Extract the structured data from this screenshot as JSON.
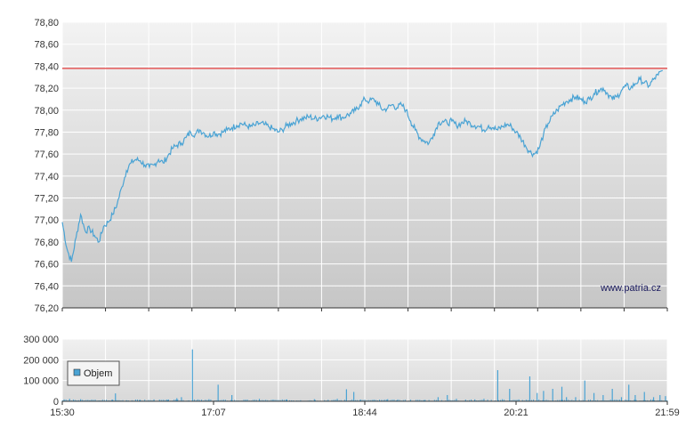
{
  "chart_data": [
    {
      "type": "line",
      "ylim": [
        76.2,
        78.8
      ],
      "y_ticks": [
        "76,20",
        "76,40",
        "76,60",
        "76,80",
        "77,00",
        "77,20",
        "77,40",
        "77,60",
        "77,80",
        "78,00",
        "78,20",
        "78,40",
        "78,60",
        "78,80"
      ],
      "reference_line": 78.38,
      "x_range": [
        "15:30",
        "21:59"
      ],
      "watermark": "www.patria.cz",
      "grid": true,
      "colors": {
        "line": "#4aa3d4",
        "reference": "#e33b3b",
        "grid": "#ffffff",
        "bg_top": "#f2f2f2",
        "bg_bottom": "#c9c9c9"
      },
      "series": [
        {
          "values": [
            [
              0,
              76.98
            ],
            [
              5,
              76.74
            ],
            [
              10,
              76.62
            ],
            [
              15,
              76.84
            ],
            [
              20,
              77.05
            ],
            [
              25,
              76.9
            ],
            [
              30,
              76.92
            ],
            [
              35,
              76.86
            ],
            [
              40,
              76.8
            ],
            [
              45,
              76.94
            ],
            [
              50,
              76.98
            ],
            [
              55,
              77.05
            ],
            [
              60,
              77.15
            ],
            [
              65,
              77.3
            ],
            [
              70,
              77.45
            ],
            [
              75,
              77.52
            ],
            [
              80,
              77.55
            ],
            [
              85,
              77.54
            ],
            [
              90,
              77.5
            ],
            [
              95,
              77.48
            ],
            [
              100,
              77.5
            ],
            [
              105,
              77.55
            ],
            [
              110,
              77.52
            ],
            [
              115,
              77.58
            ],
            [
              120,
              77.65
            ],
            [
              125,
              77.68
            ],
            [
              130,
              77.7
            ],
            [
              135,
              77.75
            ],
            [
              140,
              77.8
            ],
            [
              145,
              77.78
            ],
            [
              150,
              77.82
            ],
            [
              155,
              77.79
            ],
            [
              160,
              77.76
            ],
            [
              165,
              77.8
            ],
            [
              170,
              77.78
            ],
            [
              175,
              77.8
            ],
            [
              180,
              77.82
            ],
            [
              185,
              77.84
            ],
            [
              190,
              77.86
            ],
            [
              195,
              77.88
            ],
            [
              200,
              77.86
            ],
            [
              205,
              77.85
            ],
            [
              210,
              77.86
            ],
            [
              215,
              77.88
            ],
            [
              220,
              77.87
            ],
            [
              225,
              77.85
            ],
            [
              230,
              77.83
            ],
            [
              235,
              77.8
            ],
            [
              240,
              77.82
            ],
            [
              245,
              77.86
            ],
            [
              250,
              77.88
            ],
            [
              255,
              77.9
            ],
            [
              260,
              77.92
            ],
            [
              265,
              77.93
            ],
            [
              270,
              77.94
            ],
            [
              275,
              77.92
            ],
            [
              280,
              77.93
            ],
            [
              285,
              77.95
            ],
            [
              290,
              77.94
            ],
            [
              295,
              77.92
            ],
            [
              300,
              77.95
            ],
            [
              305,
              77.93
            ],
            [
              310,
              77.95
            ],
            [
              315,
              77.97
            ],
            [
              320,
              78.0
            ],
            [
              325,
              78.05
            ],
            [
              330,
              78.1
            ],
            [
              335,
              78.08
            ],
            [
              340,
              78.1
            ],
            [
              345,
              78.05
            ],
            [
              350,
              78.0
            ],
            [
              355,
              78.02
            ],
            [
              360,
              78.05
            ],
            [
              365,
              78.02
            ],
            [
              370,
              78.05
            ],
            [
              375,
              78.0
            ],
            [
              380,
              77.9
            ],
            [
              385,
              77.82
            ],
            [
              390,
              77.75
            ],
            [
              395,
              77.72
            ],
            [
              400,
              77.7
            ],
            [
              405,
              77.78
            ],
            [
              410,
              77.88
            ],
            [
              415,
              77.9
            ],
            [
              420,
              77.88
            ],
            [
              425,
              77.9
            ],
            [
              430,
              77.86
            ],
            [
              435,
              77.88
            ],
            [
              440,
              77.9
            ],
            [
              445,
              77.88
            ],
            [
              450,
              77.86
            ],
            [
              455,
              77.85
            ],
            [
              460,
              77.82
            ],
            [
              465,
              77.86
            ],
            [
              470,
              77.84
            ],
            [
              475,
              77.82
            ],
            [
              480,
              77.85
            ],
            [
              485,
              77.87
            ],
            [
              490,
              77.85
            ],
            [
              495,
              77.8
            ],
            [
              500,
              77.75
            ],
            [
              505,
              77.68
            ],
            [
              510,
              77.62
            ],
            [
              515,
              77.6
            ],
            [
              520,
              77.65
            ],
            [
              525,
              77.78
            ],
            [
              530,
              77.88
            ],
            [
              535,
              77.95
            ],
            [
              540,
              78.0
            ],
            [
              545,
              78.05
            ],
            [
              550,
              78.08
            ],
            [
              555,
              78.1
            ],
            [
              560,
              78.12
            ],
            [
              565,
              78.1
            ],
            [
              570,
              78.08
            ],
            [
              575,
              78.1
            ],
            [
              580,
              78.15
            ],
            [
              585,
              78.18
            ],
            [
              590,
              78.2
            ],
            [
              595,
              78.15
            ],
            [
              600,
              78.1
            ],
            [
              605,
              78.12
            ],
            [
              610,
              78.18
            ],
            [
              615,
              78.22
            ],
            [
              620,
              78.2
            ],
            [
              625,
              78.24
            ],
            [
              630,
              78.28
            ],
            [
              635,
              78.25
            ],
            [
              640,
              78.22
            ],
            [
              645,
              78.28
            ],
            [
              650,
              78.32
            ],
            [
              655,
              78.36
            ]
          ]
        }
      ]
    },
    {
      "type": "bar",
      "title": "",
      "ylim": [
        0,
        300000
      ],
      "y_ticks": [
        "0",
        "100 000",
        "200 000",
        "300 000"
      ],
      "x_ticks": [
        "15:30",
        "17:07",
        "18:44",
        "20:21",
        "21:59"
      ],
      "legend": [
        "Objem"
      ],
      "legend_position": "left",
      "grid": true,
      "colors": {
        "bar": "#4aa3d4",
        "legend_box": "#4aa3d4"
      },
      "series": [
        {
          "name": "Objem",
          "values": [
            [
              2,
              9000
            ],
            [
              8,
              12000
            ],
            [
              14,
              6000
            ],
            [
              20,
              10000
            ],
            [
              30,
              5000
            ],
            [
              40,
              4000
            ],
            [
              55,
              8000
            ],
            [
              58,
              38000
            ],
            [
              70,
              5000
            ],
            [
              85,
              7000
            ],
            [
              100,
              9000
            ],
            [
              115,
              6000
            ],
            [
              125,
              15000
            ],
            [
              130,
              20000
            ],
            [
              138,
              4000
            ],
            [
              142,
              250000
            ],
            [
              148,
              9000
            ],
            [
              160,
              10000
            ],
            [
              170,
              80000
            ],
            [
              185,
              30000
            ],
            [
              200,
              6000
            ],
            [
              215,
              12000
            ],
            [
              230,
              8000
            ],
            [
              245,
              9000
            ],
            [
              260,
              5000
            ],
            [
              275,
              10000
            ],
            [
              290,
              7000
            ],
            [
              300,
              12000
            ],
            [
              310,
              58000
            ],
            [
              318,
              45000
            ],
            [
              325,
              8000
            ],
            [
              340,
              6000
            ],
            [
              355,
              10000
            ],
            [
              365,
              5000
            ],
            [
              380,
              7000
            ],
            [
              395,
              6000
            ],
            [
              410,
              20000
            ],
            [
              420,
              30000
            ],
            [
              430,
              12000
            ],
            [
              440,
              8000
            ],
            [
              450,
              9000
            ],
            [
              460,
              12000
            ],
            [
              475,
              150000
            ],
            [
              480,
              10000
            ],
            [
              488,
              60000
            ],
            [
              498,
              9000
            ],
            [
              510,
              120000
            ],
            [
              518,
              40000
            ],
            [
              525,
              50000
            ],
            [
              535,
              60000
            ],
            [
              545,
              70000
            ],
            [
              550,
              20000
            ],
            [
              560,
              20000
            ],
            [
              570,
              100000
            ],
            [
              580,
              40000
            ],
            [
              590,
              30000
            ],
            [
              600,
              60000
            ],
            [
              610,
              20000
            ],
            [
              618,
              80000
            ],
            [
              625,
              30000
            ],
            [
              635,
              45000
            ],
            [
              645,
              20000
            ],
            [
              652,
              30000
            ],
            [
              658,
              25000
            ]
          ]
        }
      ]
    }
  ]
}
